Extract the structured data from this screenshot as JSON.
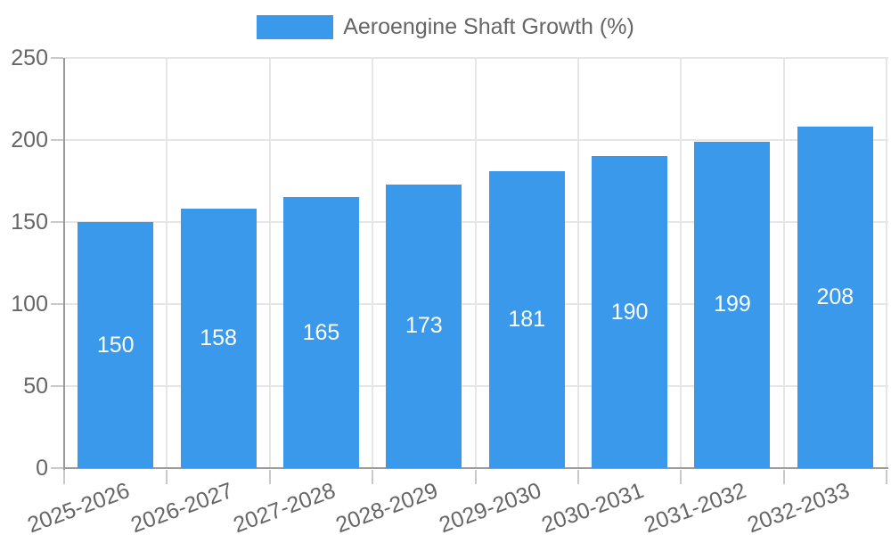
{
  "legend": {
    "items": [
      {
        "label": "Aeroengine Shaft Growth (%)",
        "color": "#3B99EC"
      }
    ],
    "position": "top"
  },
  "chart_data": {
    "type": "bar",
    "title": "",
    "categories": [
      "2025-2026",
      "2026-2027",
      "2027-2028",
      "2028-2029",
      "2029-2030",
      "2030-2031",
      "2031-2032",
      "2032-2033"
    ],
    "series": [
      {
        "name": "Aeroengine Shaft Growth (%)",
        "values": [
          150,
          158,
          165,
          173,
          181,
          190,
          199,
          208
        ],
        "color": "#3B99EC"
      }
    ],
    "value_labels_shown": true,
    "y_tick_labels": [
      "0",
      "50",
      "100",
      "150",
      "200",
      "250"
    ],
    "ylim": [
      0,
      250
    ],
    "ytick_step": 50,
    "xlabel": "",
    "ylabel": "",
    "x_tick_rotation_deg": -20,
    "grid": true,
    "legend_position": "top",
    "colors": {
      "bar": "#3B99EC",
      "value_label": "#FFFFFF",
      "axis_text": "#666666",
      "axis_line": "#9A9A9A",
      "gridline": "#E6E6E6",
      "tick_mark": "#C9C9C9",
      "background": "#FFFFFF"
    }
  }
}
